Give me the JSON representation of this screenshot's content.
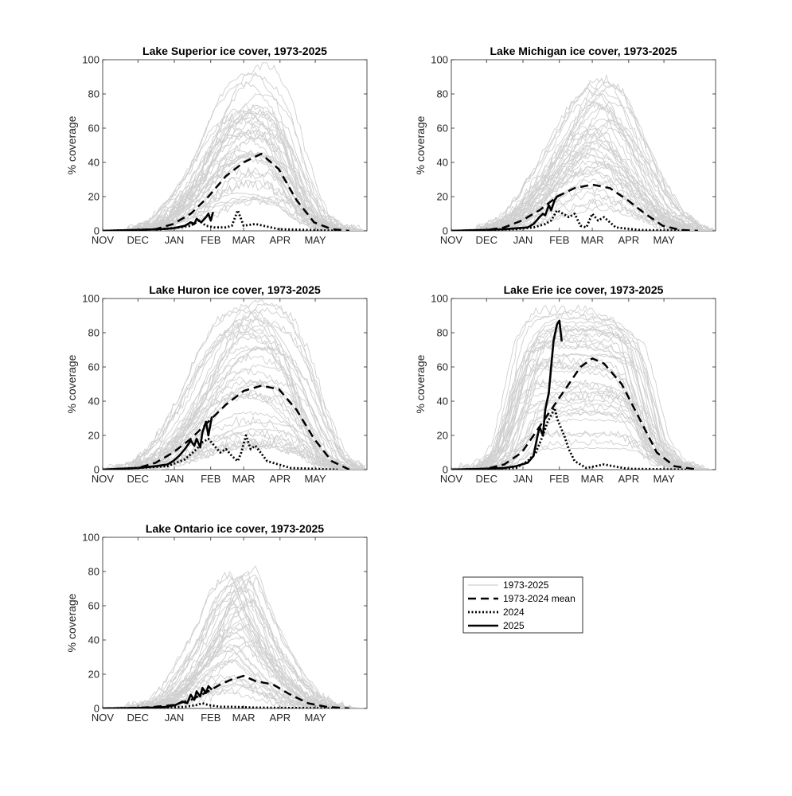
{
  "chart_data": [
    {
      "type": "line",
      "title": "Lake Superior ice cover, 1973-2025",
      "ylabel": "% coverage",
      "xlabel": "",
      "ylim": [
        0,
        100
      ],
      "yticks": [
        "0",
        "20",
        "40",
        "60",
        "80",
        "100"
      ],
      "xticks": [
        "NOV",
        "DEC",
        "JAN",
        "FEB",
        "MAR",
        "APR",
        "MAY"
      ],
      "x_unit": "days since Nov 1",
      "series": [
        {
          "name": "1973-2024 mean",
          "style": "dashed",
          "x": [
            0,
            30,
            45,
            60,
            75,
            90,
            105,
            120,
            135,
            150,
            165,
            180,
            195,
            210
          ],
          "y": [
            0,
            0.5,
            1,
            4,
            10,
            20,
            32,
            40,
            45,
            36,
            18,
            5,
            1,
            0
          ]
        },
        {
          "name": "2024",
          "style": "dotted",
          "x": [
            0,
            30,
            50,
            65,
            75,
            82,
            88,
            95,
            105,
            110,
            115,
            120,
            130,
            150,
            175,
            200
          ],
          "y": [
            0,
            0.5,
            1,
            2,
            3,
            6,
            3,
            2,
            2,
            3,
            12,
            3,
            4,
            1,
            0.5,
            0
          ]
        },
        {
          "name": "2025",
          "style": "solid",
          "x": [
            0,
            30,
            50,
            60,
            70,
            75,
            78,
            80,
            84,
            88,
            90,
            92,
            94
          ],
          "y": [
            0,
            0.5,
            1,
            1.5,
            3,
            5,
            4,
            7,
            5,
            8,
            10,
            6,
            11
          ]
        }
      ],
      "envelope": {
        "name": "1973-2025",
        "x": [
          0,
          30,
          50,
          60,
          75,
          90,
          100,
          120,
          135,
          150,
          165,
          180,
          195,
          215
        ],
        "ymax": [
          0,
          1,
          8,
          20,
          35,
          60,
          80,
          97,
          95,
          80,
          40,
          12,
          3,
          0
        ]
      }
    },
    {
      "type": "line",
      "title": "Lake Michigan ice cover, 1973-2025",
      "ylabel": "% coverage",
      "xlabel": "",
      "ylim": [
        0,
        100
      ],
      "yticks": [
        "0",
        "20",
        "40",
        "60",
        "80",
        "100"
      ],
      "xticks": [
        "NOV",
        "DEC",
        "JAN",
        "FEB",
        "MAR",
        "APR",
        "MAY"
      ],
      "x_unit": "days since Nov 1",
      "series": [
        {
          "name": "1973-2024 mean",
          "style": "dashed",
          "x": [
            0,
            30,
            45,
            60,
            75,
            90,
            105,
            120,
            135,
            150,
            165,
            180,
            195,
            210
          ],
          "y": [
            0,
            0.5,
            2,
            6,
            12,
            20,
            25,
            27,
            25,
            18,
            10,
            3,
            0.5,
            0
          ]
        },
        {
          "name": "2024",
          "style": "dotted",
          "x": [
            0,
            30,
            55,
            70,
            80,
            85,
            90,
            95,
            100,
            105,
            110,
            115,
            120,
            125,
            130,
            140,
            160,
            200
          ],
          "y": [
            0,
            0.5,
            1,
            2,
            4,
            6,
            12,
            10,
            8,
            10,
            3,
            2,
            10,
            6,
            8,
            2,
            0.5,
            0
          ]
        },
        {
          "name": "2025",
          "style": "solid",
          "x": [
            0,
            30,
            45,
            55,
            65,
            70,
            75,
            78,
            80,
            83,
            85,
            88,
            90,
            93
          ],
          "y": [
            0,
            0.5,
            1,
            1.5,
            2,
            4,
            8,
            10,
            9,
            15,
            12,
            18,
            20,
            21
          ]
        }
      ],
      "envelope": {
        "name": "1973-2025",
        "x": [
          0,
          30,
          50,
          65,
          80,
          95,
          110,
          125,
          140,
          155,
          170,
          185,
          200,
          215
        ],
        "ymax": [
          0,
          1,
          8,
          22,
          40,
          60,
          80,
          92,
          85,
          60,
          35,
          15,
          5,
          0
        ]
      }
    },
    {
      "type": "line",
      "title": "Lake Huron ice cover, 1973-2025",
      "ylabel": "% coverage",
      "xlabel": "",
      "ylim": [
        0,
        100
      ],
      "yticks": [
        "0",
        "20",
        "40",
        "60",
        "80",
        "100"
      ],
      "xticks": [
        "NOV",
        "DEC",
        "JAN",
        "FEB",
        "MAR",
        "APR",
        "MAY"
      ],
      "x_unit": "days since Nov 1",
      "series": [
        {
          "name": "1973-2024 mean",
          "style": "dashed",
          "x": [
            0,
            30,
            45,
            60,
            75,
            90,
            105,
            120,
            135,
            150,
            165,
            180,
            195,
            210
          ],
          "y": [
            0,
            1,
            4,
            10,
            18,
            28,
            38,
            46,
            49,
            47,
            35,
            18,
            5,
            0
          ]
        },
        {
          "name": "2024",
          "style": "dotted",
          "x": [
            0,
            30,
            55,
            70,
            80,
            85,
            90,
            95,
            100,
            105,
            110,
            115,
            118,
            122,
            126,
            130,
            140,
            160,
            200
          ],
          "y": [
            0,
            1,
            2,
            6,
            12,
            16,
            18,
            14,
            10,
            12,
            8,
            5,
            10,
            20,
            12,
            14,
            5,
            1,
            0
          ]
        },
        {
          "name": "2025",
          "style": "solid",
          "x": [
            0,
            30,
            45,
            55,
            60,
            65,
            70,
            75,
            78,
            80,
            83,
            85,
            88,
            90,
            93
          ],
          "y": [
            0,
            1,
            2,
            3,
            5,
            8,
            12,
            17,
            14,
            18,
            13,
            22,
            28,
            20,
            31
          ]
        }
      ],
      "envelope": {
        "name": "1973-2025",
        "x": [
          0,
          30,
          45,
          60,
          75,
          90,
          105,
          120,
          135,
          150,
          165,
          180,
          195,
          215
        ],
        "ymax": [
          0,
          2,
          10,
          25,
          45,
          70,
          90,
          99,
          99,
          92,
          70,
          35,
          8,
          0
        ]
      }
    },
    {
      "type": "line",
      "title": "Lake Erie ice cover, 1973-2025",
      "ylabel": "% coverage",
      "xlabel": "",
      "ylim": [
        0,
        100
      ],
      "yticks": [
        "0",
        "20",
        "40",
        "60",
        "80",
        "100"
      ],
      "xticks": [
        "NOV",
        "DEC",
        "JAN",
        "FEB",
        "MAR",
        "APR",
        "MAY"
      ],
      "x_unit": "days since Nov 1",
      "series": [
        {
          "name": "1973-2024 mean",
          "style": "dashed",
          "x": [
            0,
            30,
            45,
            60,
            75,
            90,
            100,
            110,
            120,
            130,
            145,
            160,
            175,
            190,
            210
          ],
          "y": [
            0,
            0.5,
            3,
            10,
            25,
            40,
            50,
            60,
            65,
            62,
            50,
            30,
            10,
            2,
            0
          ]
        },
        {
          "name": "2024",
          "style": "dotted",
          "x": [
            0,
            30,
            55,
            65,
            72,
            78,
            82,
            86,
            88,
            90,
            93,
            96,
            100,
            105,
            115,
            130,
            150,
            200
          ],
          "y": [
            0,
            0.5,
            1,
            5,
            10,
            20,
            28,
            33,
            36,
            30,
            25,
            20,
            12,
            5,
            1,
            3,
            0.5,
            0
          ]
        },
        {
          "name": "2025",
          "style": "solid",
          "x": [
            0,
            30,
            45,
            55,
            60,
            65,
            70,
            72,
            75,
            78,
            80,
            83,
            85,
            87,
            90,
            92,
            94
          ],
          "y": [
            0,
            0.5,
            1,
            2,
            3,
            4,
            8,
            15,
            25,
            20,
            35,
            45,
            60,
            75,
            85,
            87,
            75
          ]
        }
      ],
      "envelope": {
        "name": "1973-2025",
        "x": [
          0,
          30,
          45,
          55,
          65,
          75,
          85,
          100,
          120,
          140,
          155,
          165,
          175,
          190,
          210
        ],
        "ymax": [
          0,
          2,
          15,
          45,
          80,
          95,
          99,
          99,
          99,
          96,
          85,
          55,
          20,
          6,
          0
        ]
      }
    },
    {
      "type": "line",
      "title": "Lake Ontario ice cover, 1973-2025",
      "ylabel": "% coverage",
      "xlabel": "",
      "ylim": [
        0,
        100
      ],
      "yticks": [
        "0",
        "20",
        "40",
        "60",
        "80",
        "100"
      ],
      "xticks": [
        "NOV",
        "DEC",
        "JAN",
        "FEB",
        "MAR",
        "APR",
        "MAY"
      ],
      "x_unit": "days since Nov 1",
      "series": [
        {
          "name": "1973-2024 mean",
          "style": "dashed",
          "x": [
            0,
            30,
            45,
            60,
            75,
            90,
            100,
            110,
            120,
            130,
            145,
            160,
            175,
            190,
            210
          ],
          "y": [
            0,
            0.3,
            1,
            2,
            5,
            10,
            14,
            17,
            19,
            16,
            14,
            8,
            3,
            1,
            0
          ]
        },
        {
          "name": "2024",
          "style": "dotted",
          "x": [
            0,
            30,
            55,
            70,
            80,
            85,
            90,
            95,
            100,
            110,
            130,
            160,
            200
          ],
          "y": [
            0,
            0.3,
            0.5,
            1,
            2,
            3,
            2,
            1.5,
            1,
            1,
            0.5,
            0.3,
            0
          ]
        },
        {
          "name": "2025",
          "style": "solid",
          "x": [
            0,
            30,
            45,
            55,
            62,
            68,
            72,
            75,
            78,
            80,
            83,
            85,
            88,
            90,
            93
          ],
          "y": [
            0,
            0.3,
            0.5,
            1,
            2,
            4,
            3,
            8,
            5,
            10,
            7,
            12,
            9,
            13,
            11
          ]
        }
      ],
      "envelope": {
        "name": "1973-2025",
        "x": [
          0,
          30,
          50,
          60,
          75,
          90,
          100,
          110,
          120,
          130,
          145,
          160,
          175,
          190,
          210
        ],
        "ymax": [
          0,
          1,
          5,
          12,
          30,
          50,
          70,
          80,
          85,
          65,
          40,
          22,
          8,
          2,
          0
        ]
      }
    }
  ],
  "legend": {
    "entries": [
      {
        "label": "1973-2025",
        "style": "gray"
      },
      {
        "label": "1973-2024 mean",
        "style": "dashed"
      },
      {
        "label": "2024",
        "style": "dotted"
      },
      {
        "label": "2025",
        "style": "solid"
      }
    ]
  },
  "colors": {
    "history_lines": "#cfcfcf",
    "highlight": "#000000",
    "axis": "#262626"
  }
}
